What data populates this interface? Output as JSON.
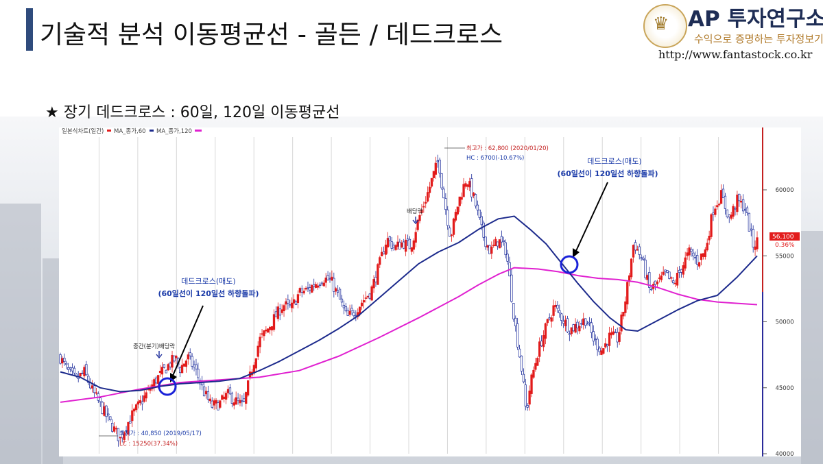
{
  "header": {
    "title": "기술적 분석 이동평균선 - 골든 / 데드크로스",
    "brand_name": "AP 투자연구소",
    "brand_tagline": "수익으로 증명하는 투자정보기업",
    "brand_url": "http://www.fantastock.co.kr"
  },
  "subtitle": "★ 장기 데드크로스 : 60일, 120일 이동평균선",
  "colors": {
    "accent_bar": "#2f4b7c",
    "ma60": "#1c2a8c",
    "ma120": "#e020d0",
    "up": "#e21b1b",
    "down": "#1a2a9a",
    "annotation": "#1a3aa8",
    "circle": "#1a22d8"
  },
  "chart_data": {
    "type": "candlestick",
    "legend": "일본식차트(일간) — MA_종가,60 — MA_종가,120",
    "legend_parts": {
      "price": "일본식차트(일간)",
      "ma60": "MA_종가,60",
      "ma120": "MA_종가,120"
    },
    "x_range": [
      "2019-02",
      "2020-07"
    ],
    "ylim": [
      40000,
      64000
    ],
    "y_ticks": [
      40000,
      45000,
      50000,
      55000,
      60000
    ],
    "y_tick_labels": [
      "40000",
      "45000",
      "50000",
      "55000",
      "60000"
    ],
    "last_price": {
      "label": "56,100",
      "change": "0.36%"
    },
    "close_path": [
      [
        0,
        47300
      ],
      [
        2,
        46200
      ],
      [
        4,
        45600
      ],
      [
        6,
        46200
      ],
      [
        8,
        44800
      ],
      [
        10,
        43700
      ],
      [
        12,
        42600
      ],
      [
        14,
        41600
      ],
      [
        15,
        41100
      ],
      [
        16,
        41800
      ],
      [
        18,
        42900
      ],
      [
        20,
        43800
      ],
      [
        22,
        44700
      ],
      [
        24,
        45600
      ],
      [
        26,
        46300
      ],
      [
        28,
        47000
      ],
      [
        29,
        47200
      ],
      [
        30,
        46400
      ],
      [
        32,
        47300
      ],
      [
        34,
        46300
      ],
      [
        36,
        44700
      ],
      [
        38,
        43600
      ],
      [
        40,
        43800
      ],
      [
        42,
        44500
      ],
      [
        44,
        44000
      ],
      [
        46,
        43600
      ],
      [
        48,
        46300
      ],
      [
        50,
        48600
      ],
      [
        52,
        49400
      ],
      [
        54,
        50400
      ],
      [
        56,
        51300
      ],
      [
        58,
        51000
      ],
      [
        60,
        52200
      ],
      [
        62,
        52400
      ],
      [
        64,
        52900
      ],
      [
        66,
        53300
      ],
      [
        68,
        53100
      ],
      [
        70,
        51800
      ],
      [
        72,
        50300
      ],
      [
        74,
        50800
      ],
      [
        76,
        51600
      ],
      [
        78,
        52300
      ],
      [
        80,
        54200
      ],
      [
        82,
        56300
      ],
      [
        84,
        55600
      ],
      [
        86,
        56000
      ],
      [
        88,
        55700
      ],
      [
        90,
        57800
      ],
      [
        92,
        59500
      ],
      [
        94,
        61400
      ],
      [
        95,
        62300
      ],
      [
        96,
        60000
      ],
      [
        98,
        56400
      ],
      [
        100,
        59100
      ],
      [
        102,
        60900
      ],
      [
        104,
        59200
      ],
      [
        106,
        56700
      ],
      [
        108,
        55300
      ],
      [
        110,
        56200
      ],
      [
        112,
        55400
      ],
      [
        114,
        50200
      ],
      [
        116,
        46100
      ],
      [
        117,
        43000
      ],
      [
        118,
        45200
      ],
      [
        120,
        47800
      ],
      [
        122,
        49600
      ],
      [
        124,
        51200
      ],
      [
        126,
        50300
      ],
      [
        128,
        49400
      ],
      [
        130,
        49800
      ],
      [
        132,
        50200
      ],
      [
        134,
        48600
      ],
      [
        136,
        47800
      ],
      [
        138,
        48900
      ],
      [
        140,
        48700
      ],
      [
        142,
        51800
      ],
      [
        144,
        56000
      ],
      [
        146,
        54800
      ],
      [
        148,
        52400
      ],
      [
        150,
        52900
      ],
      [
        152,
        53600
      ],
      [
        154,
        52800
      ],
      [
        156,
        54100
      ],
      [
        158,
        55300
      ],
      [
        160,
        54600
      ],
      [
        162,
        55400
      ],
      [
        164,
        58600
      ],
      [
        166,
        59600
      ],
      [
        168,
        57800
      ],
      [
        170,
        59200
      ],
      [
        172,
        58600
      ],
      [
        174,
        55800
      ],
      [
        175,
        56100
      ]
    ],
    "ma60": [
      [
        0,
        46200
      ],
      [
        5,
        45800
      ],
      [
        10,
        45000
      ],
      [
        15,
        44700
      ],
      [
        20,
        44800
      ],
      [
        25,
        45100
      ],
      [
        30,
        45300
      ],
      [
        35,
        45400
      ],
      [
        40,
        45500
      ],
      [
        45,
        45700
      ],
      [
        50,
        46300
      ],
      [
        55,
        47000
      ],
      [
        60,
        47800
      ],
      [
        65,
        48600
      ],
      [
        70,
        49500
      ],
      [
        75,
        50500
      ],
      [
        80,
        51800
      ],
      [
        85,
        53100
      ],
      [
        90,
        54400
      ],
      [
        95,
        55300
      ],
      [
        100,
        56000
      ],
      [
        105,
        57000
      ],
      [
        110,
        57800
      ],
      [
        114,
        58000
      ],
      [
        118,
        57000
      ],
      [
        122,
        55900
      ],
      [
        126,
        54400
      ],
      [
        130,
        52900
      ],
      [
        134,
        51500
      ],
      [
        138,
        50300
      ],
      [
        142,
        49400
      ],
      [
        145,
        49300
      ],
      [
        150,
        50100
      ],
      [
        155,
        50900
      ],
      [
        160,
        51600
      ],
      [
        165,
        52000
      ],
      [
        170,
        53400
      ],
      [
        175,
        55000
      ]
    ],
    "ma120": [
      [
        0,
        43900
      ],
      [
        10,
        44300
      ],
      [
        20,
        44900
      ],
      [
        30,
        45400
      ],
      [
        40,
        45600
      ],
      [
        50,
        45800
      ],
      [
        60,
        46300
      ],
      [
        70,
        47400
      ],
      [
        80,
        48800
      ],
      [
        90,
        50300
      ],
      [
        100,
        51900
      ],
      [
        105,
        52800
      ],
      [
        110,
        53600
      ],
      [
        114,
        54100
      ],
      [
        120,
        54000
      ],
      [
        125,
        53800
      ],
      [
        130,
        53500
      ],
      [
        135,
        53300
      ],
      [
        140,
        53200
      ],
      [
        145,
        53000
      ],
      [
        150,
        52600
      ],
      [
        155,
        52100
      ],
      [
        160,
        51700
      ],
      [
        165,
        51500
      ],
      [
        170,
        51400
      ],
      [
        175,
        51300
      ]
    ],
    "annotations": {
      "high_label": "최고가 : 62,800 (2020/01/20)",
      "high_sub": "HC : 6700(-10.67%)",
      "low_label": "최저가 : 40,850 (2019/05/17)",
      "low_sub": "LC : 15250(37.34%)",
      "div1": "중간(분기)배당락",
      "div2": "배당락",
      "dc_title": "데드크로스(매도)",
      "dc_desc": "(60일선이 120일선 하향돌파)"
    }
  }
}
